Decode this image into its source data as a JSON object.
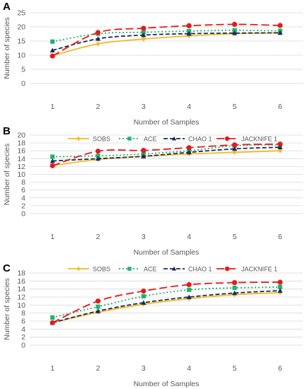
{
  "colors": {
    "SOBS": "#f5b922",
    "ACE": "#1fb26e",
    "CHAO 1": "#1b2a5c",
    "JACKNIFE 1": "#e41a1c",
    "grid": "#d9d9d9",
    "axis_text": "#595959"
  },
  "legend_markers": {
    "SOBS": "diamond",
    "ACE": "square",
    "CHAO 1": "triangle",
    "JACKNIFE 1": "circle"
  },
  "chart_data": [
    {
      "panel": "A",
      "type": "line",
      "title": "",
      "xlabel": "Number of Samples",
      "ylabel": "Number of species",
      "x": [
        1,
        2,
        3,
        4,
        5,
        6
      ],
      "ylim": [
        0,
        25
      ],
      "yticks": [
        0,
        5,
        10,
        15,
        20,
        25
      ],
      "grid": true,
      "legend_position": "bottom",
      "series": [
        {
          "name": "SOBS",
          "values": [
            9.8,
            14.0,
            15.7,
            16.8,
            17.6,
            17.9
          ]
        },
        {
          "name": "ACE",
          "values": [
            14.8,
            17.6,
            18.1,
            18.5,
            18.8,
            18.6
          ]
        },
        {
          "name": "CHAO 1",
          "values": [
            11.7,
            15.8,
            17.1,
            17.6,
            17.8,
            17.9
          ]
        },
        {
          "name": "JACKNIFE 1",
          "values": [
            9.7,
            18.0,
            19.5,
            20.4,
            20.9,
            20.5
          ]
        }
      ]
    },
    {
      "panel": "B",
      "type": "line",
      "title": "",
      "xlabel": "Number of Samples",
      "ylabel": "Number of species",
      "x": [
        1,
        2,
        3,
        4,
        5,
        6
      ],
      "ylim": [
        0,
        20
      ],
      "yticks": [
        0,
        2,
        4,
        6,
        8,
        10,
        12,
        14,
        16,
        18,
        20
      ],
      "grid": true,
      "legend_position": "bottom",
      "series": [
        {
          "name": "SOBS",
          "values": [
            12.2,
            13.8,
            14.6,
            15.2,
            15.6,
            16.0
          ]
        },
        {
          "name": "ACE",
          "values": [
            14.5,
            14.7,
            15.2,
            16.0,
            17.3,
            17.5
          ]
        },
        {
          "name": "CHAO 1",
          "values": [
            13.4,
            14.0,
            14.6,
            15.6,
            16.5,
            16.9
          ]
        },
        {
          "name": "JACKNIFE 1",
          "values": [
            12.2,
            15.9,
            16.1,
            16.8,
            17.5,
            17.7
          ]
        }
      ]
    },
    {
      "panel": "C",
      "type": "line",
      "title": "",
      "xlabel": "Number of Samples",
      "ylabel": "Number of species",
      "x": [
        1,
        2,
        3,
        4,
        5,
        6
      ],
      "ylim": [
        0,
        18
      ],
      "yticks": [
        0,
        2,
        4,
        6,
        8,
        10,
        12,
        14,
        16,
        18
      ],
      "grid": true,
      "legend_position": "bottom",
      "series": [
        {
          "name": "SOBS",
          "values": [
            5.6,
            8.2,
            10.2,
            11.6,
            12.6,
            13.1
          ]
        },
        {
          "name": "ACE",
          "values": [
            6.9,
            9.6,
            12.2,
            13.8,
            14.3,
            14.5
          ]
        },
        {
          "name": "CHAO 1",
          "values": [
            5.6,
            8.5,
            10.6,
            12.0,
            13.0,
            13.6
          ]
        },
        {
          "name": "JACKNIFE 1",
          "values": [
            5.6,
            11.0,
            13.5,
            15.1,
            15.6,
            15.7
          ]
        }
      ]
    }
  ]
}
